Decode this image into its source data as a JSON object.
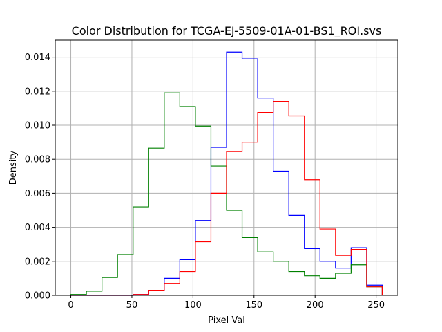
{
  "chart_data": {
    "type": "histogram",
    "title": "Color Distribution for TCGA-EJ-5509-01A-01-BS1_ROI.svs",
    "xlabel": "Pixel Val",
    "ylabel": "Density",
    "xlim": [
      -12.75,
      267.75
    ],
    "ylim": [
      0,
      0.015
    ],
    "xticks": [
      0,
      50,
      100,
      150,
      200,
      250
    ],
    "yticks": [
      0.0,
      0.002,
      0.004,
      0.006,
      0.008,
      0.01,
      0.012,
      0.014
    ],
    "ytick_labels": [
      "0.000",
      "0.002",
      "0.004",
      "0.006",
      "0.008",
      "0.010",
      "0.012",
      "0.014"
    ],
    "grid": true,
    "bin_edges": [
      0,
      12.75,
      25.5,
      38.25,
      51,
      63.75,
      76.5,
      89.25,
      102,
      114.75,
      127.5,
      140.25,
      153,
      165.75,
      178.5,
      191.25,
      204,
      216.75,
      229.5,
      242.25,
      255
    ],
    "series": [
      {
        "color": "#0000ff",
        "values": [
          0,
          0,
          0,
          0,
          5e-05,
          0.0003,
          0.001,
          0.0021,
          0.0044,
          0.0087,
          0.0143,
          0.0139,
          0.0116,
          0.0073,
          0.0047,
          0.00275,
          0.002,
          0.0016,
          0.0028,
          0.0006
        ]
      },
      {
        "color": "#008000",
        "values": [
          5e-05,
          0.00025,
          0.00105,
          0.0024,
          0.0052,
          0.00865,
          0.0119,
          0.0111,
          0.00995,
          0.0076,
          0.005,
          0.0034,
          0.00255,
          0.002,
          0.0014,
          0.00115,
          0.001,
          0.0013,
          0.0018,
          0.0005
        ]
      },
      {
        "color": "#ff0000",
        "values": [
          0,
          0,
          0,
          0,
          5e-05,
          0.0003,
          0.0007,
          0.0014,
          0.00315,
          0.006,
          0.00845,
          0.009,
          0.01075,
          0.0114,
          0.01055,
          0.0068,
          0.0039,
          0.00235,
          0.0027,
          0.0005
        ]
      }
    ]
  }
}
